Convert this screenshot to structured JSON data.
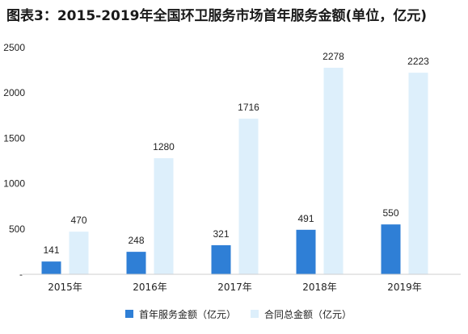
{
  "chart_data": {
    "type": "bar",
    "title": "图表3：2015-2019年全国环卫服务市场首年服务金额(单位，亿元)",
    "categories": [
      "2015年",
      "2016年",
      "2017年",
      "2018年",
      "2019年"
    ],
    "series": [
      {
        "name": "首年服务金额（亿元）",
        "values": [
          141,
          248,
          321,
          491,
          550
        ],
        "color": "#2f7fd6"
      },
      {
        "name": "合同总金额（亿元）",
        "values": [
          470,
          1280,
          1716,
          2278,
          2223
        ],
        "color": "#ddeffb"
      }
    ],
    "ylim": [
      0,
      2500
    ],
    "yticks": [
      500,
      1000,
      1500,
      2000,
      2500
    ],
    "ytick_labels": [
      "500",
      "1000",
      "1500",
      "2000",
      "2500"
    ],
    "zero_tick_label": "-",
    "grid": false,
    "legend": "bottom"
  }
}
